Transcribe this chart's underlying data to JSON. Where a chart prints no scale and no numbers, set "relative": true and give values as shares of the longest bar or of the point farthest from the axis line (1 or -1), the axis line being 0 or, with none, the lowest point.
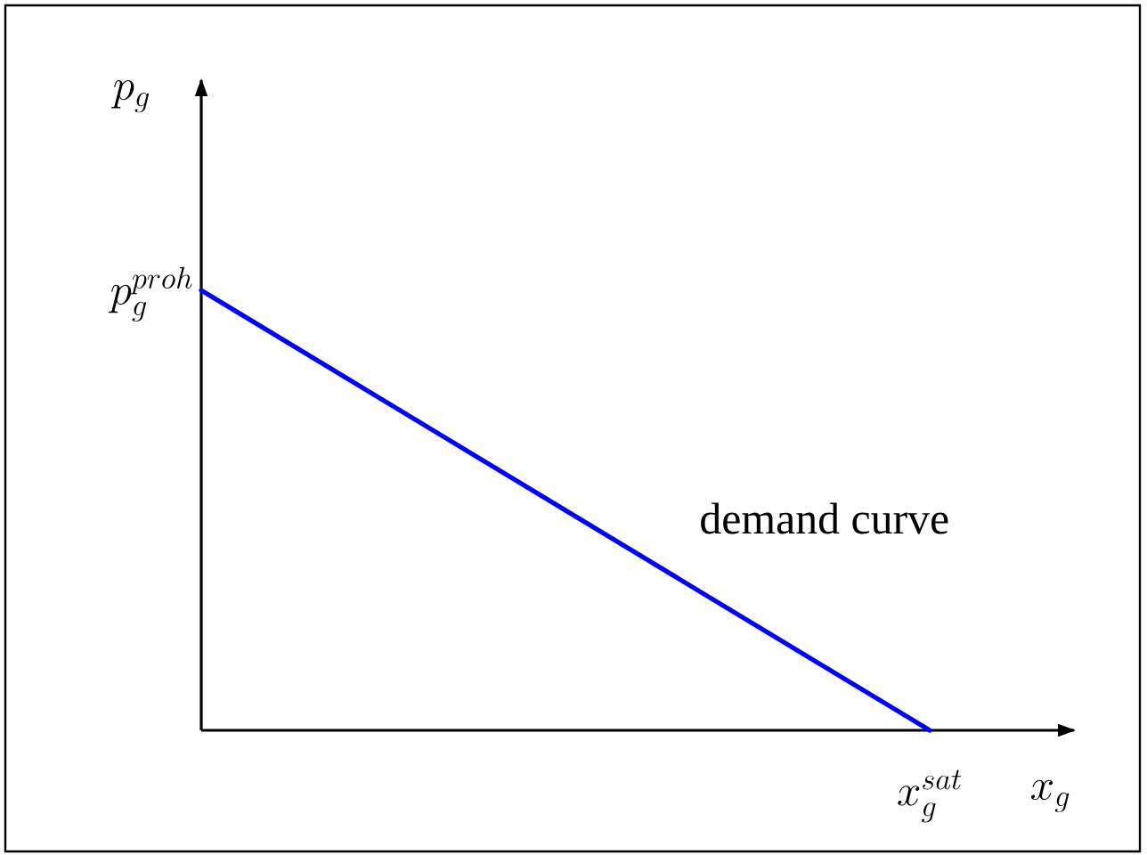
{
  "chart_data": {
    "type": "line",
    "relative": true,
    "categories": [
      null,
      null
    ],
    "series": [
      {
        "color": "#0000ff",
        "values": [
          1,
          0
        ]
      }
    ],
    "xlabel": "x_g",
    "annotations": [
      "p_g",
      "p_g^{proh}",
      "demand curve",
      "x_g^{sat}"
    ]
  }
}
